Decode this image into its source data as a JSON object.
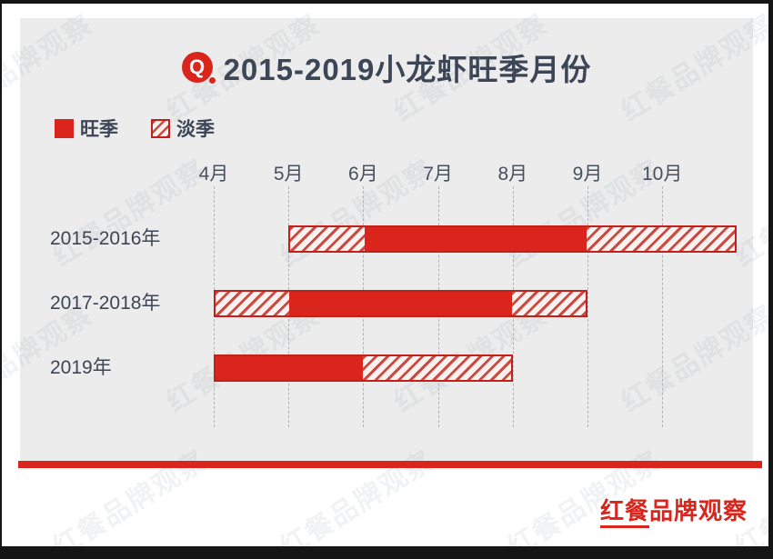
{
  "chart_data": {
    "type": "bar",
    "subtype": "gantt-timeline",
    "title": "2015-2019小龙虾旺季月份",
    "legend": [
      "旺季",
      "淡季"
    ],
    "legend_position": "top-left",
    "x_axis": {
      "ticks": [
        "4月",
        "5月",
        "6月",
        "7月",
        "8月",
        "9月",
        "10月"
      ],
      "unit": "月",
      "range": [
        4,
        11
      ],
      "grid": "dashed-vertical"
    },
    "categories": [
      "2015-2016年",
      "2017-2018年",
      "2019年"
    ],
    "series": [
      {
        "name": "2015-2016年",
        "segments": [
          {
            "type": "淡季",
            "from": 5,
            "to": 6
          },
          {
            "type": "旺季",
            "from": 6,
            "to": 9
          },
          {
            "type": "淡季",
            "from": 9,
            "to": 11
          }
        ]
      },
      {
        "name": "2017-2018年",
        "segments": [
          {
            "type": "淡季",
            "from": 4,
            "to": 5
          },
          {
            "type": "旺季",
            "from": 5,
            "to": 8
          },
          {
            "type": "淡季",
            "from": 8,
            "to": 9
          }
        ]
      },
      {
        "name": "2019年",
        "segments": [
          {
            "type": "旺季",
            "from": 4,
            "to": 6
          },
          {
            "type": "淡季",
            "from": 6,
            "to": 8
          }
        ]
      }
    ]
  },
  "header": {
    "q_icon": "Q"
  },
  "footer": {
    "brand": "红餐品牌观察"
  },
  "watermark": {
    "text": "红餐品牌观察"
  },
  "colors": {
    "red": "#d9251c",
    "bar_border": "#c2201a",
    "hatch_stripe": "#c94b43",
    "title_text": "#3c4656",
    "panel_bg": "#ececec"
  }
}
